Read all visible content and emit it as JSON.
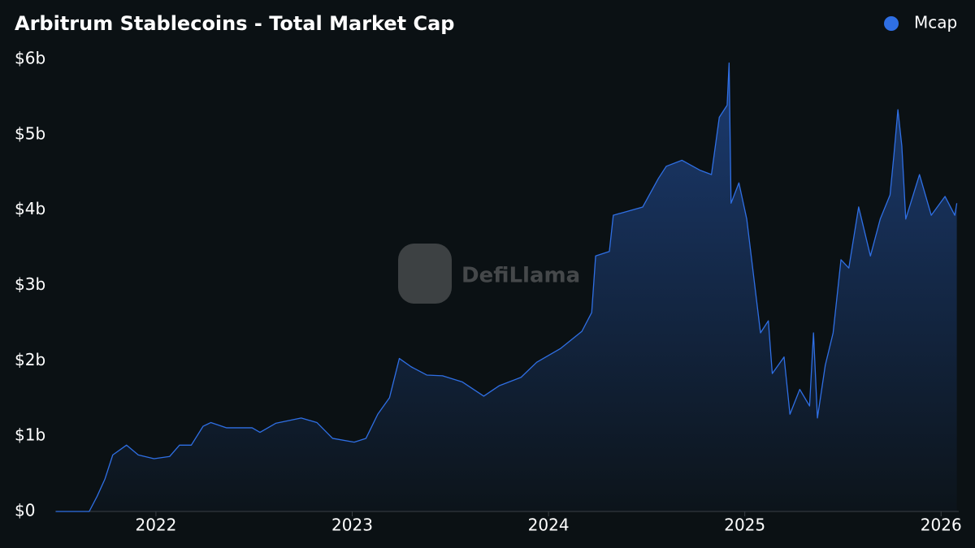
{
  "chart_data": {
    "type": "area",
    "title": "Arbitrum Stablecoins - Total Market Cap",
    "watermark": "DefiLlama",
    "legend": "top-right",
    "grid": false,
    "background": "#0b1114",
    "x": [
      2021.49,
      2021.66,
      2021.7,
      2021.74,
      2021.78,
      2021.85,
      2021.91,
      2021.99,
      2022.07,
      2022.12,
      2022.18,
      2022.24,
      2022.28,
      2022.36,
      2022.49,
      2022.53,
      2022.61,
      2022.74,
      2022.82,
      2022.9,
      2023.01,
      2023.07,
      2023.13,
      2023.19,
      2023.24,
      2023.3,
      2023.38,
      2023.46,
      2023.56,
      2023.67,
      2023.75,
      2023.86,
      2023.94,
      2024.06,
      2024.17,
      2024.22,
      2024.24,
      2024.31,
      2024.33,
      2024.48,
      2024.56,
      2024.6,
      2024.68,
      2024.77,
      2024.83,
      2024.87,
      2024.91,
      2024.92,
      2024.93,
      2024.97,
      2025.01,
      2025.06,
      2025.08,
      2025.12,
      2025.14,
      2025.2,
      2025.23,
      2025.28,
      2025.33,
      2025.35,
      2025.37,
      2025.41,
      2025.45,
      2025.49,
      2025.53,
      2025.58,
      2025.64,
      2025.69,
      2025.74,
      2025.76,
      2025.78,
      2025.8,
      2025.82,
      2025.89,
      2025.95,
      2026.02,
      2026.07,
      2026.08
    ],
    "series": [
      {
        "name": "Mcap",
        "color": "#2f6fe4",
        "values": [
          0,
          0,
          0.2,
          0.43,
          0.75,
          0.88,
          0.75,
          0.7,
          0.73,
          0.88,
          0.88,
          1.13,
          1.18,
          1.11,
          1.11,
          1.05,
          1.17,
          1.24,
          1.18,
          0.97,
          0.92,
          0.97,
          1.29,
          1.51,
          2.03,
          1.92,
          1.81,
          1.8,
          1.72,
          1.53,
          1.67,
          1.78,
          1.98,
          2.16,
          2.39,
          2.64,
          3.39,
          3.45,
          3.93,
          4.04,
          4.42,
          4.58,
          4.66,
          4.53,
          4.47,
          5.23,
          5.39,
          5.95,
          4.09,
          4.36,
          3.88,
          2.8,
          2.37,
          2.53,
          1.83,
          2.05,
          1.29,
          1.62,
          1.4,
          2.37,
          1.24,
          1.94,
          2.37,
          3.34,
          3.23,
          4.04,
          3.39,
          3.88,
          4.2,
          4.74,
          5.33,
          4.85,
          3.88,
          4.47,
          3.93,
          4.18,
          3.93,
          4.09
        ]
      }
    ],
    "xlim": [
      2021.487,
      2026.09
    ],
    "xticks": [
      2022,
      2023,
      2024,
      2025,
      2026
    ],
    "ylim": [
      0,
      6
    ],
    "yticks": [
      {
        "value": 0,
        "label": "$0"
      },
      {
        "value": 1,
        "label": "$1b"
      },
      {
        "value": 2,
        "label": "$2b"
      },
      {
        "value": 3,
        "label": "$3b"
      },
      {
        "value": 4,
        "label": "$4b"
      },
      {
        "value": 5,
        "label": "$5b"
      },
      {
        "value": 6,
        "label": "$6b"
      }
    ]
  }
}
